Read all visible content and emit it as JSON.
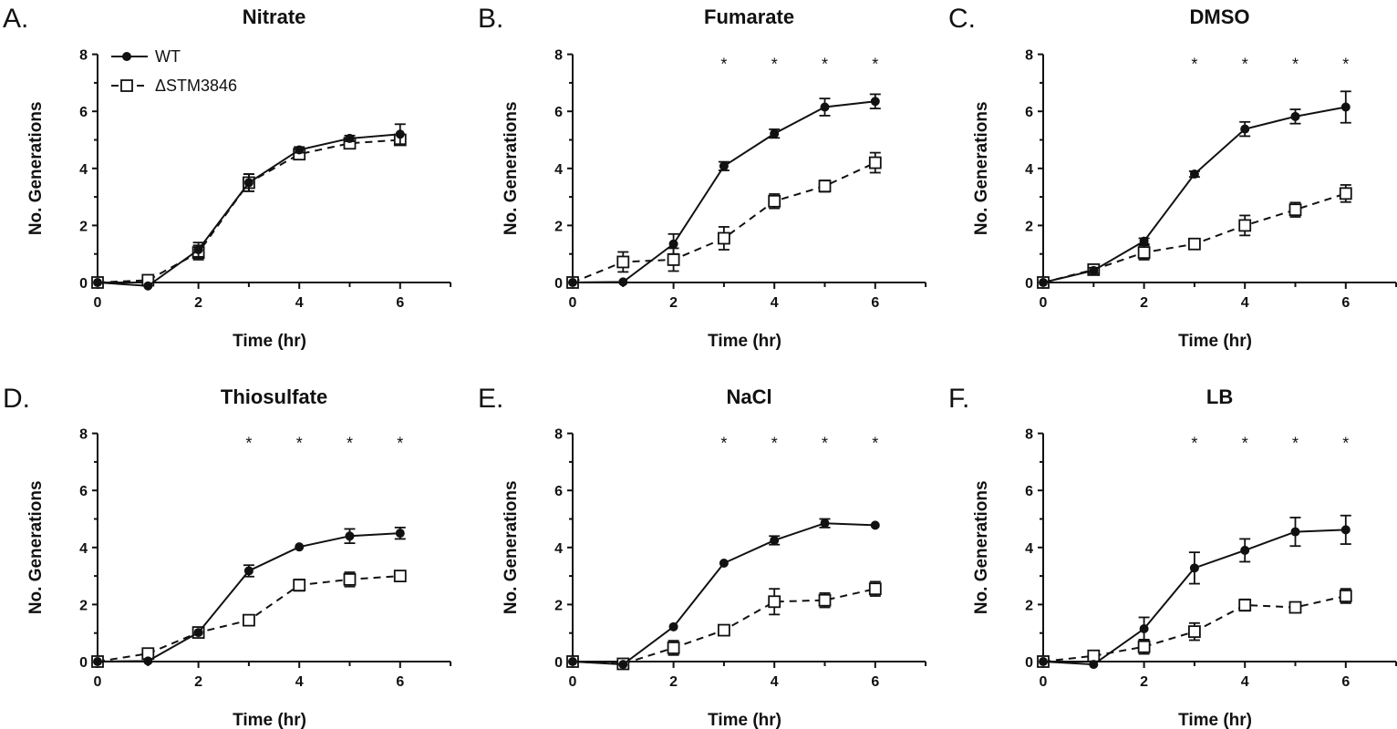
{
  "legend": {
    "wt": "WT",
    "mutant": "ΔSTM3846"
  },
  "chart_data": [
    {
      "type": "line",
      "panel": "A.",
      "title": "Nitrate",
      "xlabel": "Time (hr)",
      "ylabel": "No. Generations",
      "x": [
        0,
        1,
        2,
        3,
        4,
        5,
        6
      ],
      "xticks": [
        "0",
        "2",
        "4",
        "6"
      ],
      "yticks": [
        "0",
        "2",
        "4",
        "6",
        "8"
      ],
      "xlim": [
        0,
        7
      ],
      "ylim": [
        0,
        8
      ],
      "series": [
        {
          "name": "WT",
          "values": [
            0.0,
            -0.12,
            1.15,
            3.5,
            4.65,
            5.05,
            5.2
          ],
          "errors": [
            0.05,
            0.05,
            0.25,
            0.3,
            0.1,
            0.1,
            0.35
          ]
        },
        {
          "name": "ΔSTM3846",
          "values": [
            0.0,
            0.08,
            1.05,
            3.5,
            4.5,
            4.88,
            5.0
          ],
          "errors": [
            0.05,
            0.08,
            0.25,
            0.3,
            0.12,
            0.1,
            0.15
          ]
        }
      ],
      "significance": []
    },
    {
      "type": "line",
      "panel": "B.",
      "title": "Fumarate",
      "xlabel": "Time (hr)",
      "ylabel": "No. Generations",
      "x": [
        0,
        1,
        2,
        3,
        4,
        5,
        6
      ],
      "xticks": [
        "0",
        "2",
        "4",
        "6"
      ],
      "yticks": [
        "0",
        "2",
        "4",
        "6",
        "8"
      ],
      "xlim": [
        0,
        7
      ],
      "ylim": [
        0,
        8
      ],
      "series": [
        {
          "name": "WT",
          "values": [
            0.0,
            0.02,
            1.35,
            4.08,
            5.22,
            6.15,
            6.35
          ],
          "errors": [
            0.05,
            0.05,
            0.35,
            0.15,
            0.15,
            0.3,
            0.25
          ]
        },
        {
          "name": "ΔSTM3846",
          "values": [
            0.0,
            0.72,
            0.8,
            1.55,
            2.85,
            3.38,
            4.2
          ],
          "errors": [
            0.05,
            0.35,
            0.4,
            0.4,
            0.25,
            0.2,
            0.35
          ]
        }
      ],
      "significance": [
        3,
        4,
        5,
        6
      ]
    },
    {
      "type": "line",
      "panel": "C.",
      "title": "DMSO",
      "xlabel": "Time (hr)",
      "ylabel": "No. Generations",
      "x": [
        0,
        1,
        2,
        3,
        4,
        5,
        6
      ],
      "xticks": [
        "0",
        "2",
        "4",
        "6"
      ],
      "yticks": [
        "0",
        "2",
        "4",
        "6",
        "8"
      ],
      "xlim": [
        0,
        7
      ],
      "ylim": [
        0,
        8
      ],
      "series": [
        {
          "name": "WT",
          "values": [
            0.0,
            0.42,
            1.45,
            3.8,
            5.38,
            5.82,
            6.15
          ],
          "errors": [
            0.05,
            0.1,
            0.1,
            0.1,
            0.25,
            0.25,
            0.55
          ]
        },
        {
          "name": "ΔSTM3846",
          "values": [
            0.0,
            0.45,
            1.05,
            1.35,
            2.0,
            2.55,
            3.12
          ],
          "errors": [
            0.05,
            0.1,
            0.25,
            0.1,
            0.35,
            0.25,
            0.3
          ]
        }
      ],
      "significance": [
        3,
        4,
        5,
        6
      ]
    },
    {
      "type": "line",
      "panel": "D.",
      "title": "Thiosulfate",
      "xlabel": "Time (hr)",
      "ylabel": "No. Generations",
      "x": [
        0,
        1,
        2,
        3,
        4,
        5,
        6
      ],
      "xticks": [
        "0",
        "2",
        "4",
        "6"
      ],
      "yticks": [
        "0",
        "2",
        "4",
        "6",
        "8"
      ],
      "xlim": [
        0,
        7
      ],
      "ylim": [
        0,
        8
      ],
      "series": [
        {
          "name": "WT",
          "values": [
            0.0,
            0.02,
            1.02,
            3.18,
            4.02,
            4.4,
            4.5
          ],
          "errors": [
            0.05,
            0.05,
            0.05,
            0.2,
            0.05,
            0.25,
            0.2
          ]
        },
        {
          "name": "ΔSTM3846",
          "values": [
            0.0,
            0.28,
            1.02,
            1.45,
            2.68,
            2.88,
            3.0
          ],
          "errors": [
            0.05,
            0.08,
            0.05,
            0.1,
            0.2,
            0.25,
            0.15
          ]
        }
      ],
      "significance": [
        3,
        4,
        5,
        6
      ]
    },
    {
      "type": "line",
      "panel": "E.",
      "title": "NaCl",
      "xlabel": "Time (hr)",
      "ylabel": "No. Generations",
      "x": [
        0,
        1,
        2,
        3,
        4,
        5,
        6
      ],
      "xticks": [
        "0",
        "2",
        "4",
        "6"
      ],
      "yticks": [
        "0",
        "2",
        "4",
        "6",
        "8"
      ],
      "xlim": [
        0,
        7
      ],
      "ylim": [
        0,
        8
      ],
      "series": [
        {
          "name": "WT",
          "values": [
            0.0,
            -0.1,
            1.22,
            3.45,
            4.25,
            4.85,
            4.78
          ],
          "errors": [
            0.05,
            0.05,
            0.05,
            0.05,
            0.15,
            0.15,
            0.05
          ]
        },
        {
          "name": "ΔSTM3846",
          "values": [
            0.0,
            -0.08,
            0.48,
            1.1,
            2.1,
            2.15,
            2.55
          ],
          "errors": [
            0.05,
            0.05,
            0.25,
            0.1,
            0.45,
            0.25,
            0.25
          ]
        }
      ],
      "significance": [
        3,
        4,
        5,
        6
      ]
    },
    {
      "type": "line",
      "panel": "F.",
      "title": "LB",
      "xlabel": "Time (hr)",
      "ylabel": "No. Generations",
      "x": [
        0,
        1,
        2,
        3,
        4,
        5,
        6
      ],
      "xticks": [
        "0",
        "2",
        "4",
        "6"
      ],
      "yticks": [
        "0",
        "2",
        "4",
        "6",
        "8"
      ],
      "xlim": [
        0,
        7
      ],
      "ylim": [
        0,
        8
      ],
      "series": [
        {
          "name": "WT",
          "values": [
            0.0,
            -0.1,
            1.15,
            3.28,
            3.9,
            4.55,
            4.62
          ],
          "errors": [
            0.05,
            0.05,
            0.4,
            0.55,
            0.4,
            0.5,
            0.5
          ]
        },
        {
          "name": "ΔSTM3846",
          "values": [
            0.0,
            0.2,
            0.52,
            1.05,
            1.98,
            1.9,
            2.3
          ],
          "errors": [
            0.05,
            0.15,
            0.25,
            0.3,
            0.2,
            0.15,
            0.25
          ]
        }
      ],
      "significance": [
        3,
        4,
        5,
        6
      ]
    }
  ]
}
